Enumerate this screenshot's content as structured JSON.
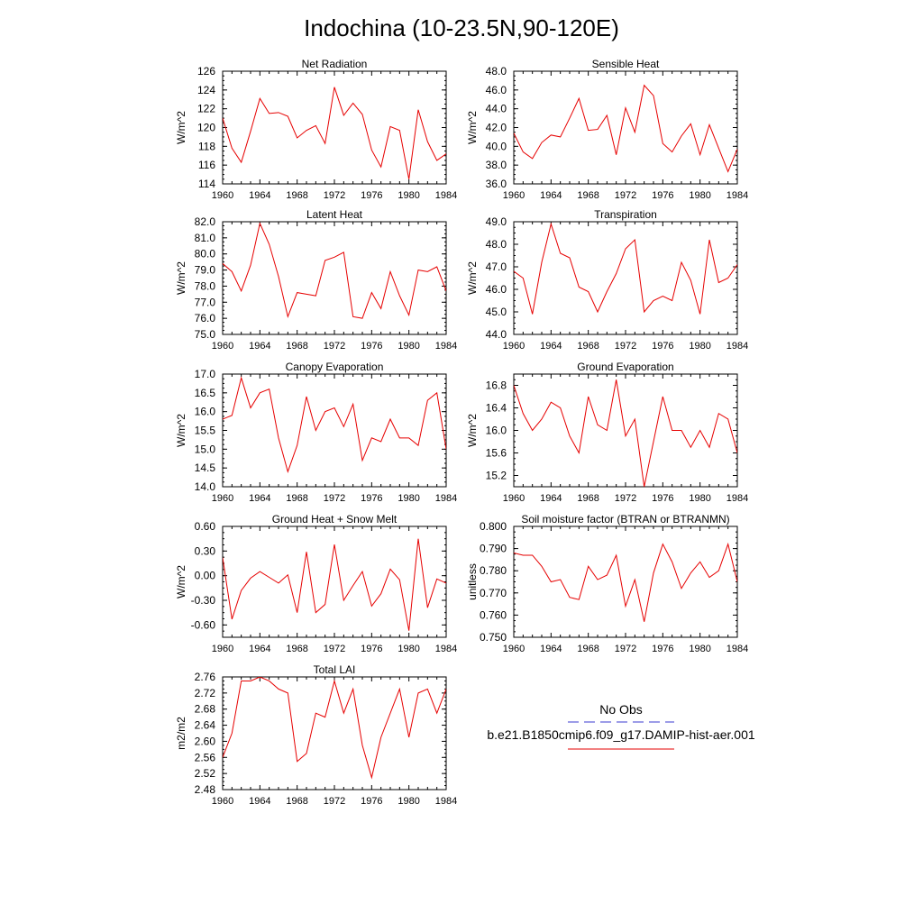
{
  "title": "Indochina (10-23.5N,90-120E)",
  "legend": {
    "obs_label": "No Obs",
    "obs_color": "#3a3ad0",
    "model_label": "b.e21.B1850cmip6.f09_g17.DAMIP-hist-aer.001",
    "model_color": "#e60000"
  },
  "chart_data": [
    {
      "type": "line",
      "title": "Net Radiation",
      "ylabel": "W/m^2",
      "xlim": [
        1960,
        1984
      ],
      "ylim": [
        114,
        126
      ],
      "xticks": [
        "1960",
        "1964",
        "1968",
        "1972",
        "1976",
        "1980",
        "1984"
      ],
      "yticks": [
        "114",
        "116",
        "118",
        "120",
        "122",
        "124",
        "126"
      ],
      "series": [
        {
          "x": [
            1960,
            1961,
            1962,
            1963,
            1964,
            1965,
            1966,
            1967,
            1968,
            1969,
            1970,
            1971,
            1972,
            1973,
            1974,
            1975,
            1976,
            1977,
            1978,
            1979,
            1980,
            1981,
            1982,
            1983,
            1984
          ],
          "values": [
            121.0,
            117.8,
            116.3,
            119.6,
            123.1,
            121.5,
            121.6,
            121.2,
            118.9,
            119.7,
            120.2,
            118.3,
            124.3,
            121.3,
            122.6,
            121.4,
            117.6,
            115.8,
            120.1,
            119.7,
            114.5,
            121.9,
            118.5,
            116.5,
            117.2
          ]
        }
      ]
    },
    {
      "type": "line",
      "title": "Sensible Heat",
      "ylabel": "W/m^2",
      "xlim": [
        1960,
        1984
      ],
      "ylim": [
        36.0,
        48.0
      ],
      "xticks": [
        "1960",
        "1964",
        "1968",
        "1972",
        "1976",
        "1980",
        "1984"
      ],
      "yticks": [
        "36.0",
        "38.0",
        "40.0",
        "42.0",
        "44.0",
        "46.0",
        "48.0"
      ],
      "series": [
        {
          "x": [
            1960,
            1961,
            1962,
            1963,
            1964,
            1965,
            1966,
            1967,
            1968,
            1969,
            1970,
            1971,
            1972,
            1973,
            1974,
            1975,
            1976,
            1977,
            1978,
            1979,
            1980,
            1981,
            1982,
            1983,
            1984
          ],
          "values": [
            41.4,
            39.4,
            38.7,
            40.4,
            41.2,
            41.0,
            43.0,
            45.1,
            41.7,
            41.8,
            43.3,
            39.1,
            44.1,
            41.5,
            46.5,
            45.4,
            40.3,
            39.4,
            41.1,
            42.4,
            39.1,
            42.3,
            39.8,
            37.3,
            39.7
          ]
        }
      ]
    },
    {
      "type": "line",
      "title": "Latent Heat",
      "ylabel": "W/m^2",
      "xlim": [
        1960,
        1984
      ],
      "ylim": [
        75.0,
        82.0
      ],
      "xticks": [
        "1960",
        "1964",
        "1968",
        "1972",
        "1976",
        "1980",
        "1984"
      ],
      "yticks": [
        "75.0",
        "76.0",
        "77.0",
        "78.0",
        "79.0",
        "80.0",
        "81.0",
        "82.0"
      ],
      "series": [
        {
          "x": [
            1960,
            1961,
            1962,
            1963,
            1964,
            1965,
            1966,
            1967,
            1968,
            1969,
            1970,
            1971,
            1972,
            1973,
            1974,
            1975,
            1976,
            1977,
            1978,
            1979,
            1980,
            1981,
            1982,
            1983,
            1984
          ],
          "values": [
            79.4,
            78.9,
            77.7,
            79.3,
            81.9,
            80.6,
            78.6,
            76.1,
            77.6,
            77.5,
            77.4,
            79.6,
            79.8,
            80.1,
            76.1,
            76.0,
            77.6,
            76.6,
            78.9,
            77.4,
            76.2,
            79.0,
            78.9,
            79.2,
            77.7
          ]
        }
      ]
    },
    {
      "type": "line",
      "title": "Transpiration",
      "ylabel": "W/m^2",
      "xlim": [
        1960,
        1984
      ],
      "ylim": [
        44.0,
        49.0
      ],
      "xticks": [
        "1960",
        "1964",
        "1968",
        "1972",
        "1976",
        "1980",
        "1984"
      ],
      "yticks": [
        "44.0",
        "45.0",
        "46.0",
        "47.0",
        "48.0",
        "49.0"
      ],
      "series": [
        {
          "x": [
            1960,
            1961,
            1962,
            1963,
            1964,
            1965,
            1966,
            1967,
            1968,
            1969,
            1970,
            1971,
            1972,
            1973,
            1974,
            1975,
            1976,
            1977,
            1978,
            1979,
            1980,
            1981,
            1982,
            1983,
            1984
          ],
          "values": [
            46.8,
            46.5,
            44.9,
            47.2,
            48.9,
            47.6,
            47.4,
            46.1,
            45.9,
            45.0,
            45.9,
            46.7,
            47.8,
            48.2,
            45.0,
            45.5,
            45.7,
            45.5,
            47.2,
            46.4,
            44.9,
            48.2,
            46.3,
            46.5,
            47.1
          ]
        }
      ]
    },
    {
      "type": "line",
      "title": "Canopy Evaporation",
      "ylabel": "W/m^2",
      "xlim": [
        1960,
        1984
      ],
      "ylim": [
        14.0,
        17.0
      ],
      "xticks": [
        "1960",
        "1964",
        "1968",
        "1972",
        "1976",
        "1980",
        "1984"
      ],
      "yticks": [
        "14.0",
        "14.5",
        "15.0",
        "15.5",
        "16.0",
        "16.5",
        "17.0"
      ],
      "series": [
        {
          "x": [
            1960,
            1961,
            1962,
            1963,
            1964,
            1965,
            1966,
            1967,
            1968,
            1969,
            1970,
            1971,
            1972,
            1973,
            1974,
            1975,
            1976,
            1977,
            1978,
            1979,
            1980,
            1981,
            1982,
            1983,
            1984
          ],
          "values": [
            15.8,
            15.9,
            16.9,
            16.1,
            16.5,
            16.6,
            15.3,
            14.4,
            15.1,
            16.4,
            15.5,
            16.0,
            16.1,
            15.6,
            16.2,
            14.7,
            15.3,
            15.2,
            15.8,
            15.3,
            15.3,
            15.1,
            16.3,
            16.5,
            15.0
          ]
        }
      ]
    },
    {
      "type": "line",
      "title": "Ground Evaporation",
      "ylabel": "W/m^2",
      "xlim": [
        1960,
        1984
      ],
      "ylim": [
        15.0,
        17.0
      ],
      "xticks": [
        "1960",
        "1964",
        "1968",
        "1972",
        "1976",
        "1980",
        "1984"
      ],
      "yticks": [
        "15.2",
        "15.6",
        "16.0",
        "16.4",
        "16.8"
      ],
      "series": [
        {
          "x": [
            1960,
            1961,
            1962,
            1963,
            1964,
            1965,
            1966,
            1967,
            1968,
            1969,
            1970,
            1971,
            1972,
            1973,
            1974,
            1975,
            1976,
            1977,
            1978,
            1979,
            1980,
            1981,
            1982,
            1983,
            1984
          ],
          "values": [
            16.8,
            16.3,
            16.0,
            16.2,
            16.5,
            16.4,
            15.9,
            15.6,
            16.6,
            16.1,
            16.0,
            16.9,
            15.9,
            16.2,
            15.0,
            15.8,
            16.6,
            16.0,
            16.0,
            15.7,
            16.0,
            15.7,
            16.3,
            16.2,
            15.6
          ]
        }
      ]
    },
    {
      "type": "line",
      "title": "Ground Heat + Snow Melt",
      "ylabel": "W/m^2",
      "xlim": [
        1960,
        1984
      ],
      "ylim": [
        -0.75,
        0.6
      ],
      "xticks": [
        "1960",
        "1964",
        "1968",
        "1972",
        "1976",
        "1980",
        "1984"
      ],
      "yticks": [
        "-0.60",
        "-0.30",
        "0.00",
        "0.30",
        "0.60"
      ],
      "series": [
        {
          "x": [
            1960,
            1961,
            1962,
            1963,
            1964,
            1965,
            1966,
            1967,
            1968,
            1969,
            1970,
            1971,
            1972,
            1973,
            1974,
            1975,
            1976,
            1977,
            1978,
            1979,
            1980,
            1981,
            1982,
            1983,
            1984
          ],
          "values": [
            0.22,
            -0.53,
            -0.18,
            -0.03,
            0.05,
            -0.02,
            -0.09,
            0.01,
            -0.45,
            0.29,
            -0.45,
            -0.35,
            0.38,
            -0.3,
            -0.12,
            0.05,
            -0.37,
            -0.22,
            0.08,
            -0.05,
            -0.67,
            0.45,
            -0.39,
            -0.04,
            -0.09
          ]
        }
      ]
    },
    {
      "type": "line",
      "title": "Soil moisture factor (BTRAN or BTRANMN)",
      "ylabel": "unitless",
      "xlim": [
        1960,
        1984
      ],
      "ylim": [
        0.75,
        0.8
      ],
      "xticks": [
        "1960",
        "1964",
        "1968",
        "1972",
        "1976",
        "1980",
        "1984"
      ],
      "yticks": [
        "0.750",
        "0.760",
        "0.770",
        "0.780",
        "0.790",
        "0.800"
      ],
      "series": [
        {
          "x": [
            1960,
            1961,
            1962,
            1963,
            1964,
            1965,
            1966,
            1967,
            1968,
            1969,
            1970,
            1971,
            1972,
            1973,
            1974,
            1975,
            1976,
            1977,
            1978,
            1979,
            1980,
            1981,
            1982,
            1983,
            1984
          ],
          "values": [
            0.788,
            0.787,
            0.787,
            0.782,
            0.775,
            0.776,
            0.768,
            0.767,
            0.782,
            0.776,
            0.778,
            0.787,
            0.764,
            0.776,
            0.757,
            0.779,
            0.792,
            0.784,
            0.772,
            0.779,
            0.784,
            0.777,
            0.78,
            0.792,
            0.775
          ]
        }
      ]
    },
    {
      "type": "line",
      "title": "Total LAI",
      "ylabel": "m2/m2",
      "xlim": [
        1960,
        1984
      ],
      "ylim": [
        2.48,
        2.76
      ],
      "xticks": [
        "1960",
        "1964",
        "1968",
        "1972",
        "1976",
        "1980",
        "1984"
      ],
      "yticks": [
        "2.48",
        "2.52",
        "2.56",
        "2.60",
        "2.64",
        "2.68",
        "2.72",
        "2.76"
      ],
      "series": [
        {
          "x": [
            1960,
            1961,
            1962,
            1963,
            1964,
            1965,
            1966,
            1967,
            1968,
            1969,
            1970,
            1971,
            1972,
            1973,
            1974,
            1975,
            1976,
            1977,
            1978,
            1979,
            1980,
            1981,
            1982,
            1983,
            1984
          ],
          "values": [
            2.56,
            2.62,
            2.75,
            2.75,
            2.76,
            2.75,
            2.73,
            2.72,
            2.55,
            2.57,
            2.67,
            2.66,
            2.75,
            2.67,
            2.73,
            2.59,
            2.51,
            2.61,
            2.67,
            2.73,
            2.61,
            2.72,
            2.73,
            2.67,
            2.73
          ]
        }
      ]
    }
  ]
}
